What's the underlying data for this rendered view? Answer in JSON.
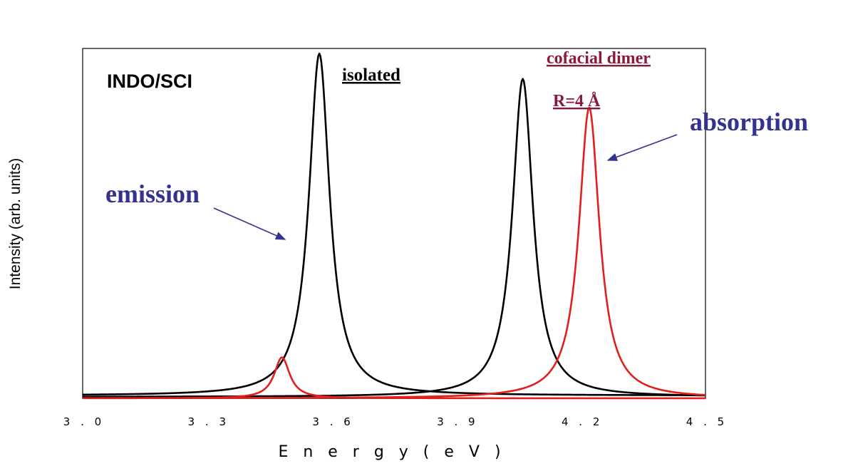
{
  "chart_data": {
    "type": "line",
    "title": "",
    "xlabel": "E n e r g y  ( e V )",
    "ylabel": "Intensity (arb. units)",
    "xlim": [
      3.0,
      4.5
    ],
    "ylim": [
      0,
      1.0
    ],
    "xticks": [
      "3 . 0",
      "3 . 3",
      "3 . 6",
      "3 . 9",
      "4 . 2",
      "4 . 5"
    ],
    "grid": false,
    "series": [
      {
        "color": "#000000",
        "peaks": [
          {
            "x": 3.57,
            "height": 1.0,
            "width": 0.06
          }
        ],
        "baseline": 0.008
      },
      {
        "color": "#000000",
        "peaks": [
          {
            "x": 4.06,
            "height": 0.93,
            "width": 0.06
          }
        ],
        "baseline": 0.004
      },
      {
        "color": "#e0201c",
        "peaks": [
          {
            "x": 3.48,
            "height": 0.12,
            "width": 0.045
          }
        ],
        "baseline": 0.0
      },
      {
        "color": "#e0201c",
        "peaks": [
          {
            "x": 4.22,
            "height": 0.85,
            "width": 0.06
          }
        ],
        "baseline": 0.0
      }
    ],
    "annotations": {
      "method": "INDO/SCI",
      "isolated": "isolated",
      "dimer_line1": "cofacial dimer",
      "dimer_line2": "R=4 Å",
      "emission": "emission",
      "absorption": "absorption"
    },
    "annotation_color": "#33338f",
    "dimer_color": "#8b1a3a"
  }
}
